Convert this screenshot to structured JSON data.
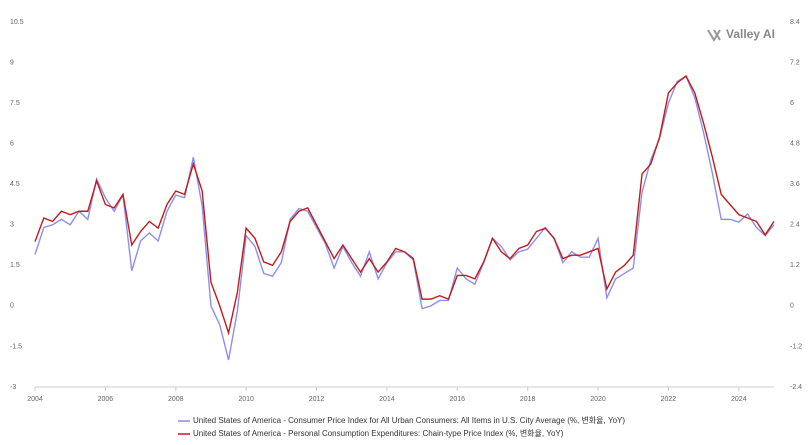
{
  "chart_data": {
    "type": "line",
    "watermark": "Valley AI",
    "x": [
      2004,
      2004.25,
      2004.5,
      2004.75,
      2005,
      2005.25,
      2005.5,
      2005.75,
      2006,
      2006.25,
      2006.5,
      2006.75,
      2007,
      2007.25,
      2007.5,
      2007.75,
      2008,
      2008.25,
      2008.5,
      2008.75,
      2009,
      2009.25,
      2009.5,
      2009.75,
      2010,
      2010.25,
      2010.5,
      2010.75,
      2011,
      2011.25,
      2011.5,
      2011.75,
      2012,
      2012.25,
      2012.5,
      2012.75,
      2013,
      2013.25,
      2013.5,
      2013.75,
      2014,
      2014.25,
      2014.5,
      2014.75,
      2015,
      2015.25,
      2015.5,
      2015.75,
      2016,
      2016.25,
      2016.5,
      2016.75,
      2017,
      2017.25,
      2017.5,
      2017.75,
      2018,
      2018.25,
      2018.5,
      2018.75,
      2019,
      2019.25,
      2019.5,
      2019.75,
      2020,
      2020.25,
      2020.5,
      2020.75,
      2021,
      2021.25,
      2021.5,
      2021.75,
      2022,
      2022.25,
      2022.5,
      2022.75,
      2023,
      2023.25,
      2023.5,
      2023.75,
      2024,
      2024.25,
      2024.5,
      2024.75,
      2025
    ],
    "xlim": [
      2004,
      2025
    ],
    "xticks": [
      2004,
      2006,
      2008,
      2010,
      2012,
      2014,
      2016,
      2018,
      2020,
      2022,
      2024
    ],
    "ylim": [
      -3,
      10.5
    ],
    "yticks": [
      -3,
      -1.5,
      0,
      1.5,
      3,
      4.5,
      6,
      7.5,
      9,
      10.5
    ],
    "y2lim": [
      -2.4,
      8.4
    ],
    "y2ticks": [
      -2.4,
      -1.2,
      0,
      1.2,
      2.4,
      3.6,
      4.8,
      6,
      7.2,
      8.4
    ],
    "grid": false,
    "legend": "bottom",
    "series": [
      {
        "name": "United States of America - Consumer Price Index for All Urban Consumers: All Items in U.S. City Average (%, 변화율, YoY)",
        "color": "#8d8ff0",
        "values": [
          1.9,
          2.9,
          3.0,
          3.2,
          3.0,
          3.5,
          3.2,
          4.7,
          4.0,
          3.5,
          4.1,
          1.3,
          2.4,
          2.7,
          2.4,
          3.5,
          4.1,
          4.0,
          5.5,
          3.7,
          0.0,
          -0.7,
          -2.0,
          -0.2,
          2.6,
          2.2,
          1.2,
          1.1,
          1.6,
          3.2,
          3.6,
          3.5,
          2.9,
          2.3,
          1.4,
          2.2,
          1.6,
          1.1,
          2.0,
          1.0,
          1.6,
          2.0,
          2.0,
          1.7,
          -0.1,
          0.0,
          0.2,
          0.2,
          1.4,
          1.0,
          0.8,
          1.6,
          2.5,
          2.2,
          1.7,
          2.0,
          2.1,
          2.5,
          2.9,
          2.5,
          1.6,
          2.0,
          1.8,
          1.8,
          2.5,
          0.3,
          1.0,
          1.2,
          1.4,
          4.2,
          5.4,
          6.2,
          7.5,
          8.3,
          8.5,
          7.7,
          6.4,
          4.9,
          3.2,
          3.2,
          3.1,
          3.4,
          2.9,
          2.6,
          3.0
        ]
      },
      {
        "name": "United States of America - Personal Consumption Expenditures: Chain-type Price Index (%, 변화율, YoY)",
        "color": "#c41a1a",
        "axis": "y2",
        "values": [
          1.9,
          2.6,
          2.5,
          2.8,
          2.7,
          2.8,
          2.8,
          3.7,
          3.0,
          2.9,
          3.3,
          1.8,
          2.2,
          2.5,
          2.3,
          3.0,
          3.4,
          3.3,
          4.2,
          3.4,
          0.7,
          0.0,
          -0.8,
          0.4,
          2.3,
          2.0,
          1.3,
          1.2,
          1.6,
          2.5,
          2.8,
          2.9,
          2.4,
          1.9,
          1.4,
          1.8,
          1.4,
          1.0,
          1.4,
          1.0,
          1.3,
          1.7,
          1.6,
          1.4,
          0.2,
          0.2,
          0.3,
          0.2,
          0.9,
          0.9,
          0.8,
          1.3,
          2.0,
          1.6,
          1.4,
          1.7,
          1.8,
          2.2,
          2.3,
          2.0,
          1.4,
          1.5,
          1.5,
          1.6,
          1.7,
          0.5,
          1.0,
          1.2,
          1.5,
          3.9,
          4.2,
          5.0,
          6.3,
          6.6,
          6.8,
          6.3,
          5.4,
          4.4,
          3.3,
          3.0,
          2.7,
          2.6,
          2.5,
          2.1,
          2.5
        ]
      }
    ]
  }
}
